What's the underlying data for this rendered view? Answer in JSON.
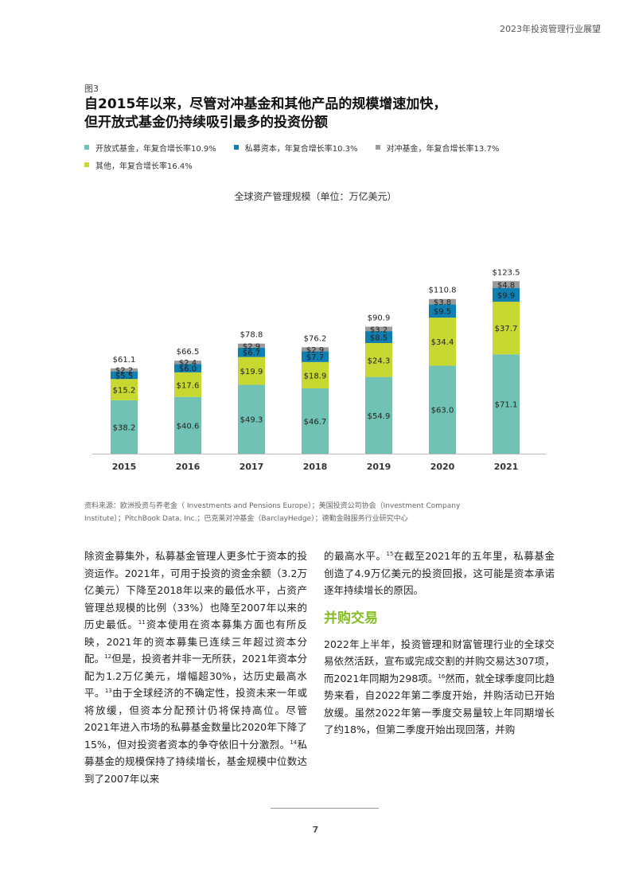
{
  "header": {
    "title": "2023年投资管理行业展望"
  },
  "figure": {
    "label": "图3",
    "title_line1": "自2015年以来，尽管对冲基金和其他产品的规模增速加快，",
    "title_line2": "但开放式基金仍持续吸引最多的投资份额"
  },
  "legend": {
    "items": [
      {
        "label": "开放式基金，年复合增长率10.9%",
        "color": "#6fc2b4"
      },
      {
        "label": "私募资本，年复合增长率10.3%",
        "color": "#0f7fb1"
      },
      {
        "label": "对冲基金，年复合增长率13.7%",
        "color": "#9a9a9a"
      },
      {
        "label": "其他，年复合增长率16.4%",
        "color": "#c8d830"
      }
    ]
  },
  "chart_data": {
    "type": "bar",
    "stacked": true,
    "title": "全球资产管理规模（单位：万亿美元）",
    "categories": [
      "2015",
      "2016",
      "2017",
      "2018",
      "2019",
      "2020",
      "2021"
    ],
    "series": [
      {
        "name": "开放式基金",
        "color": "#6fc2b4",
        "values": [
          38.2,
          40.6,
          49.3,
          46.7,
          54.9,
          63.0,
          71.1
        ],
        "labels": [
          "$38.2",
          "$40.6",
          "$49.3",
          "$46.7",
          "$54.9",
          "$63.0",
          "$71.1"
        ]
      },
      {
        "name": "其他",
        "color": "#c8d830",
        "values": [
          15.2,
          17.6,
          19.9,
          18.9,
          24.3,
          34.4,
          37.7
        ],
        "labels": [
          "$15.2",
          "$17.6",
          "$19.9",
          "$18.9",
          "$24.3",
          "$34.4",
          "$37.7"
        ]
      },
      {
        "name": "私募资本",
        "color": "#0f7fb1",
        "values": [
          5.5,
          6.0,
          6.7,
          7.7,
          8.5,
          9.5,
          9.9
        ],
        "labels": [
          "$5.5",
          "$6.0",
          "$6.7",
          "$7.7",
          "$8.5",
          "$9.5",
          "$9.9"
        ]
      },
      {
        "name": "对冲基金",
        "color": "#9a9a9a",
        "values": [
          2.2,
          2.4,
          2.9,
          2.9,
          3.2,
          3.8,
          4.8
        ],
        "labels": [
          "$2.2",
          "$2.4",
          "$2.9",
          "$2.9",
          "$3.2",
          "$3.8",
          "$4.8"
        ]
      }
    ],
    "totals": [
      "$61.1",
      "$66.5",
      "$78.8",
      "$76.2",
      "$90.9",
      "$110.8",
      "$123.5"
    ],
    "total_values": [
      61.1,
      66.5,
      78.8,
      76.2,
      90.9,
      110.8,
      123.5
    ]
  },
  "source": {
    "line1": "资料来源：欧洲投资与养老金（ Investments and Pensions Europe）；美国投资公司协会（Investment Company",
    "line2": "Institute）；PitchBook Data, Inc.；巴克莱对冲基金（BarclayHedge）；德勤金融服务行业研究中心"
  },
  "body": {
    "left": {
      "t1": "除资金募集外，私募基金管理人更多忙于资本的投资运作。2021年，可用于投资的资金余额（3.2万亿美元）下降至2018年以来的最低水平，占资产管理总规模的比例（33%）也降至2007年以来的历史最低。",
      "s11": "11",
      "t2": "资本使用在资本募集方面也有所反映，2021年的资本募集已连续三年超过资本分配。",
      "s12": "12",
      "t3": "但是，投资者并非一无所获，2021年资本分配为1.2万亿美元，增幅超30%，达历史最高水平。",
      "s13": "13",
      "t4": "由于全球经济的不确定性，投资未来一年或将放缓，但资本分配预计仍将保持高位。尽管2021年进入市场的私募基金数量比2020年下降了15%，但对投资者资本的争夺依旧十分激烈。",
      "s14": "14",
      "t5": "私募基金的规模保持了持续增长，基金规模中位数达到了2007年以来"
    },
    "right": {
      "t1": "的最高水平。",
      "s15": "15",
      "t2": "在截至2021年的五年里，私募基金创造了4.9万亿美元的投资回报，这可能是资本承诺逐年持续增长的原因。",
      "heading": "并购交易",
      "p2a": "2022年上半年，投资管理和财富管理行业的全球交易依然活跃，宣布或完成交割的并购交易达307项，而2021年同期为298项。",
      "s16": "16",
      "p2b": "然而，就全球季度同比趋势来看，自2022年第二季度开始，并购活动已开始放缓。虽然2022年第一季度交易量较上年同期增长了约18%，但第二季度开始出现回落，并购"
    }
  },
  "footer": {
    "page": "7"
  }
}
